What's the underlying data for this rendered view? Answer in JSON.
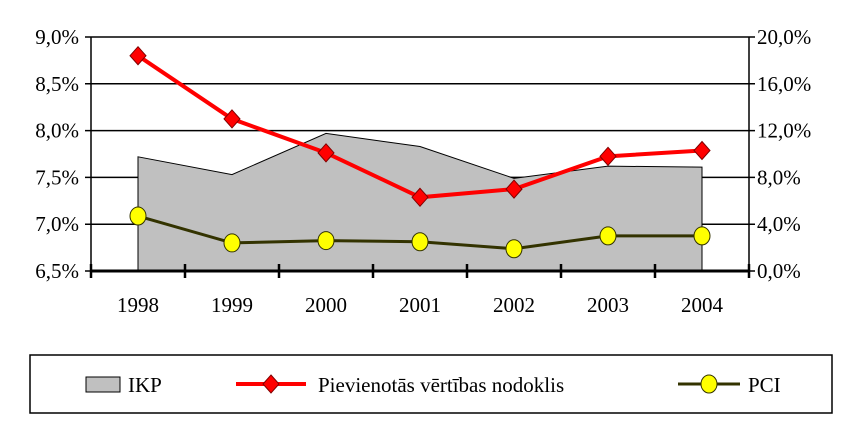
{
  "chart_data": {
    "type": "line",
    "categories": [
      "1998",
      "1999",
      "2000",
      "2001",
      "2002",
      "2003",
      "2004"
    ],
    "y_left": {
      "ylim": [
        6.5,
        9.0
      ],
      "ticks": [
        "6,5%",
        "7,0%",
        "7,5%",
        "8,0%",
        "8,5%",
        "9,0%"
      ],
      "tick_values": [
        6.5,
        7.0,
        7.5,
        8.0,
        8.5,
        9.0
      ]
    },
    "y_right": {
      "ylim": [
        0,
        20
      ],
      "ticks": [
        "0,0%",
        "4,0%",
        "8,0%",
        "12,0%",
        "16,0%",
        "20,0%"
      ],
      "tick_values": [
        0,
        4,
        8,
        12,
        16,
        20
      ]
    },
    "grid": true,
    "legend_placement": "bottom",
    "series": [
      {
        "name": "IKP",
        "kind": "area",
        "axis": "left",
        "color": "#c0c0c0",
        "values": [
          7.72,
          7.53,
          7.97,
          7.83,
          7.49,
          7.62,
          7.61
        ]
      },
      {
        "name": "Pievienotās vērtības nodoklis",
        "kind": "line",
        "axis": "right",
        "color": "#ff0000",
        "marker": "diamond",
        "values": [
          18.4,
          13.0,
          10.1,
          6.3,
          7.0,
          9.8,
          10.3
        ]
      },
      {
        "name": "PCI",
        "kind": "line",
        "axis": "right",
        "color": "#333300",
        "marker": "circle",
        "marker_color": "#ffff00",
        "values": [
          4.7,
          2.4,
          2.6,
          2.5,
          1.9,
          3.0,
          3.0
        ]
      }
    ]
  }
}
